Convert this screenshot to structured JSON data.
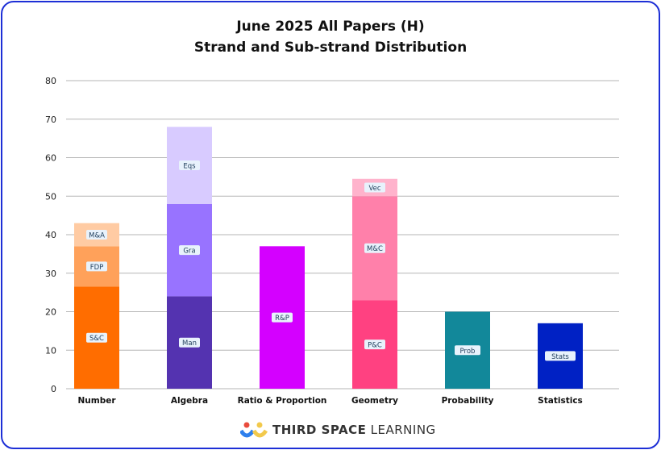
{
  "chart_data": {
    "type": "bar",
    "stacked": true,
    "title": [
      "June 2025 All Papers (H)",
      "Strand and Sub-strand Distribution"
    ],
    "xlabel": "",
    "ylabel": "",
    "ylim": [
      0,
      80
    ],
    "yticks": [
      0,
      10,
      20,
      30,
      40,
      50,
      60,
      70,
      80
    ],
    "grid": true,
    "categories": [
      "Number",
      "Algebra",
      "Ratio & Proportion",
      "Geometry",
      "Probability",
      "Statistics"
    ],
    "stacks": [
      {
        "category": "Number",
        "segments": [
          {
            "label": "S&C",
            "value": 26.5,
            "color": "#ff6d00"
          },
          {
            "label": "FDP",
            "value": 10.5,
            "color": "#ffa15a"
          },
          {
            "label": "M&A",
            "value": 6,
            "color": "#ffcba3"
          }
        ]
      },
      {
        "category": "Algebra",
        "segments": [
          {
            "label": "Man",
            "value": 24,
            "color": "#5433b0"
          },
          {
            "label": "Gra",
            "value": 24,
            "color": "#9873ff"
          },
          {
            "label": "Eqs",
            "value": 20,
            "color": "#d8cbff"
          }
        ]
      },
      {
        "category": "Ratio & Proportion",
        "segments": [
          {
            "label": "R&P",
            "value": 37,
            "color": "#d400ff"
          }
        ]
      },
      {
        "category": "Geometry",
        "segments": [
          {
            "label": "P&C",
            "value": 23,
            "color": "#ff4181"
          },
          {
            "label": "M&C",
            "value": 27,
            "color": "#ff80aa"
          },
          {
            "label": "Vec",
            "value": 4.5,
            "color": "#ffb3cc"
          }
        ]
      },
      {
        "category": "Probability",
        "segments": [
          {
            "label": "Prob",
            "value": 20,
            "color": "#12889a"
          }
        ]
      },
      {
        "category": "Statistics",
        "segments": [
          {
            "label": "Stats",
            "value": 17,
            "color": "#0021c4"
          }
        ]
      }
    ]
  },
  "footer": {
    "logo_bold": "THIRD SPACE",
    "logo_light": "LEARNING"
  },
  "colors": {
    "border": "#1d2fd6"
  }
}
